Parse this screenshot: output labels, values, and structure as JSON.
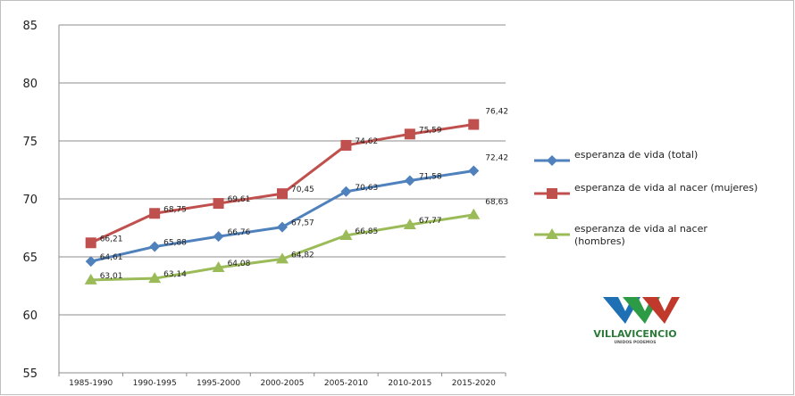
{
  "chart_data": {
    "type": "line",
    "categories": [
      "1985-1990",
      "1990-1995",
      "1995-2000",
      "2000-2005",
      "2005-2010",
      "2010-2015",
      "2015-2020"
    ],
    "series": [
      {
        "name": "esperanza de vida (total)",
        "name_lines": [
          "esperanza de vida (total)"
        ],
        "color": "#4f81bd",
        "marker": "diamond",
        "values": [
          64.61,
          65.88,
          66.76,
          67.57,
          70.63,
          71.58,
          72.42
        ],
        "labels": [
          "64,61",
          "65,88",
          "66,76",
          "67,57",
          "70,63",
          "71,58",
          "72,42"
        ]
      },
      {
        "name": "esperanza de vida al nacer (mujeres)",
        "name_lines": [
          "esperanza de vida al nacer (mujeres)"
        ],
        "color": "#c0504d",
        "marker": "square",
        "values": [
          66.21,
          68.75,
          69.61,
          70.45,
          74.62,
          75.59,
          76.42
        ],
        "labels": [
          "66,21",
          "68,75",
          "69,61",
          "70,45",
          "74,62",
          "75,59",
          "76,42"
        ]
      },
      {
        "name": "esperanza de vida al nacer (hombres)",
        "name_lines": [
          "esperanza de vida al nacer",
          "(hombres)"
        ],
        "color": "#9bbb59",
        "marker": "triangle",
        "values": [
          63.01,
          63.14,
          64.08,
          64.82,
          66.85,
          67.77,
          68.63
        ],
        "labels": [
          "63,01",
          "63,14",
          "64,08",
          "64,82",
          "66,85",
          "67,77",
          "68,63"
        ]
      }
    ],
    "ylim": [
      55,
      85
    ],
    "yticks": [
      55,
      60,
      65,
      70,
      75,
      80,
      85
    ],
    "grid": true,
    "legend_position": "right",
    "title": "",
    "xlabel": "",
    "ylabel": ""
  },
  "logo": {
    "name": "VILLAVICENCIO",
    "tagline": "UNIDOS PODEMOS",
    "colors": [
      "#1f6fb5",
      "#2d9a46",
      "#c0392b"
    ]
  }
}
